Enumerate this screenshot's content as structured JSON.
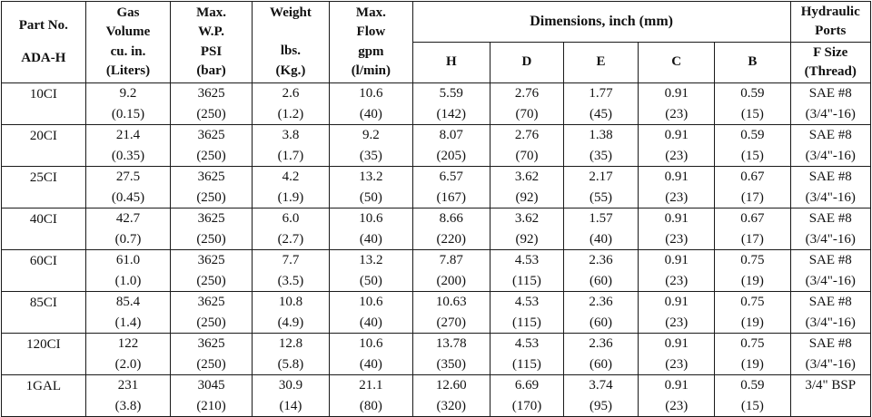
{
  "table": {
    "headers": {
      "part_no": [
        "Part No.",
        "ADA-H"
      ],
      "gas_volume": [
        "Gas",
        "Volume",
        "cu. in.",
        "(Liters)"
      ],
      "max_wp": [
        "Max.",
        "W.P.",
        "PSI",
        "(bar)"
      ],
      "weight": [
        "Weight",
        "",
        "lbs.",
        "(Kg.)"
      ],
      "max_flow": [
        "Max.",
        "Flow",
        "gpm",
        "(l/min)"
      ],
      "dimensions": "Dimensions, inch (mm)",
      "dim_cols": [
        "H",
        "D",
        "E",
        "C",
        "B"
      ],
      "hydraulic": [
        "Hydraulic",
        "Ports"
      ],
      "f_size": [
        "F Size",
        "(Thread)"
      ]
    },
    "rows": [
      {
        "part": "10CI",
        "gas": [
          "9.2",
          "(0.15)"
        ],
        "wp": [
          "3625",
          "(250)"
        ],
        "weight": [
          "2.6",
          "(1.2)"
        ],
        "flow": [
          "10.6",
          "(40)"
        ],
        "h": [
          "5.59",
          "(142)"
        ],
        "d": [
          "2.76",
          "(70)"
        ],
        "e": [
          "1.77",
          "(45)"
        ],
        "c": [
          "0.91",
          "(23)"
        ],
        "b": [
          "0.59",
          "(15)"
        ],
        "f": [
          "SAE #8",
          "(3/4\"-16)"
        ]
      },
      {
        "part": "20CI",
        "gas": [
          "21.4",
          "(0.35)"
        ],
        "wp": [
          "3625",
          "(250)"
        ],
        "weight": [
          "3.8",
          "(1.7)"
        ],
        "flow": [
          "9.2",
          "(35)"
        ],
        "h": [
          "8.07",
          "(205)"
        ],
        "d": [
          "2.76",
          "(70)"
        ],
        "e": [
          "1.38",
          "(35)"
        ],
        "c": [
          "0.91",
          "(23)"
        ],
        "b": [
          "0.59",
          "(15)"
        ],
        "f": [
          "SAE #8",
          "(3/4\"-16)"
        ]
      },
      {
        "part": "25CI",
        "gas": [
          "27.5",
          "(0.45)"
        ],
        "wp": [
          "3625",
          "(250)"
        ],
        "weight": [
          "4.2",
          "(1.9)"
        ],
        "flow": [
          "13.2",
          "(50)"
        ],
        "h": [
          "6.57",
          "(167)"
        ],
        "d": [
          "3.62",
          "(92)"
        ],
        "e": [
          "2.17",
          "(55)"
        ],
        "c": [
          "0.91",
          "(23)"
        ],
        "b": [
          "0.67",
          "(17)"
        ],
        "f": [
          "SAE #8",
          "(3/4\"-16)"
        ]
      },
      {
        "part": "40CI",
        "gas": [
          "42.7",
          "(0.7)"
        ],
        "wp": [
          "3625",
          "(250)"
        ],
        "weight": [
          "6.0",
          "(2.7)"
        ],
        "flow": [
          "10.6",
          "(40)"
        ],
        "h": [
          "8.66",
          "(220)"
        ],
        "d": [
          "3.62",
          "(92)"
        ],
        "e": [
          "1.57",
          "(40)"
        ],
        "c": [
          "0.91",
          "(23)"
        ],
        "b": [
          "0.67",
          "(17)"
        ],
        "f": [
          "SAE #8",
          "(3/4\"-16)"
        ]
      },
      {
        "part": "60CI",
        "gas": [
          "61.0",
          "(1.0)"
        ],
        "wp": [
          "3625",
          "(250)"
        ],
        "weight": [
          "7.7",
          "(3.5)"
        ],
        "flow": [
          "13.2",
          "(50)"
        ],
        "h": [
          "7.87",
          "(200)"
        ],
        "d": [
          "4.53",
          "(115)"
        ],
        "e": [
          "2.36",
          "(60)"
        ],
        "c": [
          "0.91",
          "(23)"
        ],
        "b": [
          "0.75",
          "(19)"
        ],
        "f": [
          "SAE #8",
          "(3/4\"-16)"
        ]
      },
      {
        "part": "85CI",
        "gas": [
          "85.4",
          "(1.4)"
        ],
        "wp": [
          "3625",
          "(250)"
        ],
        "weight": [
          "10.8",
          "(4.9)"
        ],
        "flow": [
          "10.6",
          "(40)"
        ],
        "h": [
          "10.63",
          "(270)"
        ],
        "d": [
          "4.53",
          "(115)"
        ],
        "e": [
          "2.36",
          "(60)"
        ],
        "c": [
          "0.91",
          "(23)"
        ],
        "b": [
          "0.75",
          "(19)"
        ],
        "f": [
          "SAE #8",
          "(3/4\"-16)"
        ]
      },
      {
        "part": "120CI",
        "gas": [
          "122",
          "(2.0)"
        ],
        "wp": [
          "3625",
          "(250)"
        ],
        "weight": [
          "12.8",
          "(5.8)"
        ],
        "flow": [
          "10.6",
          "(40)"
        ],
        "h": [
          "13.78",
          "(350)"
        ],
        "d": [
          "4.53",
          "(115)"
        ],
        "e": [
          "2.36",
          "(60)"
        ],
        "c": [
          "0.91",
          "(23)"
        ],
        "b": [
          "0.75",
          "(19)"
        ],
        "f": [
          "SAE #8",
          "(3/4\"-16)"
        ]
      },
      {
        "part": "1GAL",
        "gas": [
          "231",
          "(3.8)"
        ],
        "wp": [
          "3045",
          "(210)"
        ],
        "weight": [
          "30.9",
          "(14)"
        ],
        "flow": [
          "21.1",
          "(80)"
        ],
        "h": [
          "12.60",
          "(320)"
        ],
        "d": [
          "6.69",
          "(170)"
        ],
        "e": [
          "3.74",
          "(95)"
        ],
        "c": [
          "0.91",
          "(23)"
        ],
        "b": [
          "0.59",
          "(15)"
        ],
        "f": [
          "3/4\" BSP",
          ""
        ]
      }
    ]
  }
}
